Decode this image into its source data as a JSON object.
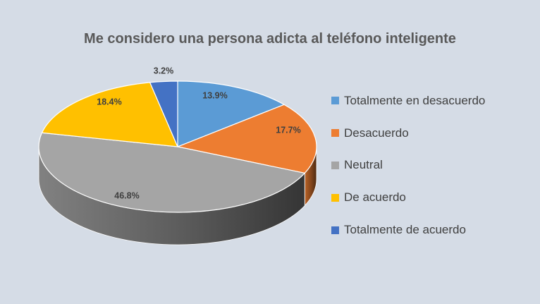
{
  "chart_data": {
    "type": "pie",
    "style": "3d",
    "title": "Me considero una persona adicta al teléfono inteligente",
    "categories": [
      "Totalmente en desacuerdo",
      "Desacuerdo",
      "Neutral",
      "De acuerdo",
      "Totalmente de acuerdo"
    ],
    "values": [
      13.9,
      17.7,
      46.8,
      18.4,
      3.2
    ],
    "value_labels": [
      "13.9%",
      "17.7%",
      "46.8%",
      "18.4%",
      "3.2%"
    ],
    "colors": [
      "#5b9bd5",
      "#ed7d31",
      "#a5a5a5",
      "#ffc000",
      "#4472c4"
    ],
    "legend_position": "right"
  }
}
